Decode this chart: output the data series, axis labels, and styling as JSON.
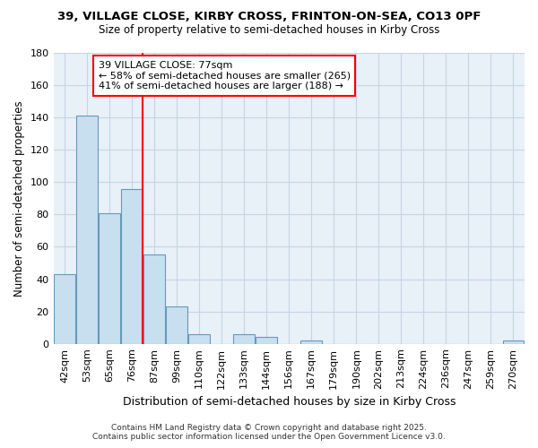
{
  "title1": "39, VILLAGE CLOSE, KIRBY CROSS, FRINTON-ON-SEA, CO13 0PF",
  "title2": "Size of property relative to semi-detached houses in Kirby Cross",
  "xlabel": "Distribution of semi-detached houses by size in Kirby Cross",
  "ylabel": "Number of semi-detached properties",
  "annotation_line1": "39 VILLAGE CLOSE: 77sqm",
  "annotation_line2": "← 58% of semi-detached houses are smaller (265)",
  "annotation_line3": "41% of semi-detached houses are larger (188) →",
  "footer1": "Contains HM Land Registry data © Crown copyright and database right 2025.",
  "footer2": "Contains public sector information licensed under the Open Government Licence v3.0.",
  "bins": [
    "42sqm",
    "53sqm",
    "65sqm",
    "76sqm",
    "87sqm",
    "99sqm",
    "110sqm",
    "122sqm",
    "133sqm",
    "144sqm",
    "156sqm",
    "167sqm",
    "179sqm",
    "190sqm",
    "202sqm",
    "213sqm",
    "224sqm",
    "236sqm",
    "247sqm",
    "259sqm",
    "270sqm"
  ],
  "values": [
    43,
    141,
    81,
    96,
    55,
    23,
    6,
    0,
    6,
    4,
    0,
    2,
    0,
    0,
    0,
    0,
    0,
    0,
    0,
    0,
    2
  ],
  "bar_color": "#c8dff0",
  "bar_edge_color": "#6699bb",
  "grid_color": "#c5d5e5",
  "bg_color": "#ffffff",
  "plot_bg_color": "#e8f0f8",
  "red_line_bin_index": 3,
  "ylim": [
    0,
    180
  ],
  "yticks": [
    0,
    20,
    40,
    60,
    80,
    100,
    120,
    140,
    160,
    180
  ]
}
